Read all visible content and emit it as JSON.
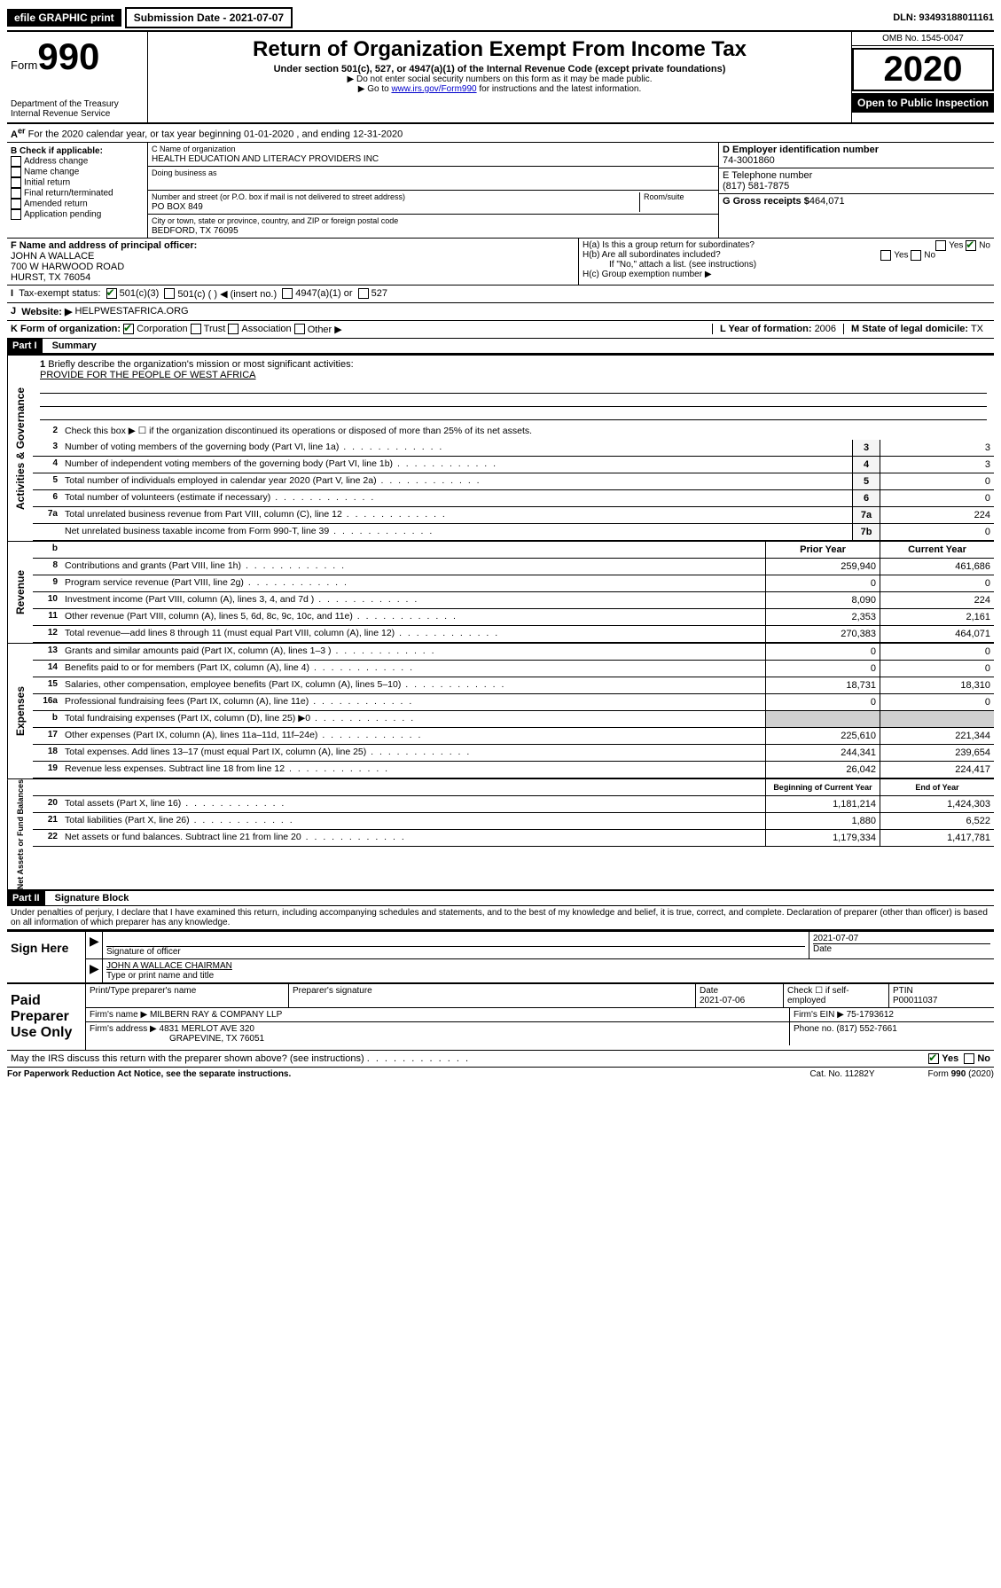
{
  "topbar": {
    "efile": "efile GRAPHIC print",
    "submission_label": "Submission Date - 2021-07-07",
    "dln_label": "DLN: 93493188011161"
  },
  "header": {
    "form_prefix": "Form",
    "form_number": "990",
    "dept": "Department of the Treasury",
    "irs": "Internal Revenue Service",
    "title": "Return of Organization Exempt From Income Tax",
    "subtitle": "Under section 501(c), 527, or 4947(a)(1) of the Internal Revenue Code (except private foundations)",
    "note1": "▶ Do not enter social security numbers on this form as it may be made public.",
    "note2_prefix": "▶ Go to ",
    "note2_link": "www.irs.gov/Form990",
    "note2_suffix": " for instructions and the latest information.",
    "omb": "OMB No. 1545-0047",
    "year": "2020",
    "inspect": "Open to Public Inspection"
  },
  "section_a": {
    "text": "For the 2020 calendar year, or tax year beginning 01-01-2020   , and ending 12-31-2020"
  },
  "box_b": {
    "title": "B Check if applicable:",
    "opts": [
      "Address change",
      "Name change",
      "Initial return",
      "Final return/terminated",
      "Amended return",
      "Application pending"
    ]
  },
  "box_c": {
    "name_label": "C Name of organization",
    "name": "HEALTH EDUCATION AND LITERACY PROVIDERS INC",
    "dba_label": "Doing business as",
    "addr_label": "Number and street (or P.O. box if mail is not delivered to street address)",
    "room_label": "Room/suite",
    "addr": "PO BOX 849",
    "city_label": "City or town, state or province, country, and ZIP or foreign postal code",
    "city": "BEDFORD, TX  76095"
  },
  "box_d": {
    "label": "D Employer identification number",
    "value": "74-3001860"
  },
  "box_e": {
    "label": "E Telephone number",
    "value": "(817) 581-7875"
  },
  "box_g": {
    "label": "G Gross receipts $",
    "value": "464,071"
  },
  "box_f": {
    "label": "F  Name and address of principal officer:",
    "name": "JOHN A WALLACE",
    "addr1": "700 W HARWOOD ROAD",
    "addr2": "HURST, TX  76054"
  },
  "box_h": {
    "ha": "H(a)  Is this a group return for subordinates?",
    "hb": "H(b)  Are all subordinates included?",
    "hb_note": "If \"No,\" attach a list. (see instructions)",
    "hc": "H(c)  Group exemption number ▶",
    "yes": "Yes",
    "no": "No"
  },
  "box_i": {
    "label": "Tax-exempt status:",
    "opt1": "501(c)(3)",
    "opt2": "501(c) (   ) ◀ (insert no.)",
    "opt3": "4947(a)(1) or",
    "opt4": "527"
  },
  "box_j": {
    "label": "Website: ▶",
    "value": "HELPWESTAFRICA.ORG"
  },
  "box_k": {
    "label": "K Form of organization:",
    "opts": [
      "Corporation",
      "Trust",
      "Association",
      "Other ▶"
    ]
  },
  "box_l": {
    "label": "L Year of formation:",
    "value": "2006"
  },
  "box_m": {
    "label": "M State of legal domicile:",
    "value": "TX"
  },
  "part1": {
    "header": "Part I",
    "title": "Summary",
    "line1_label": "Briefly describe the organization's mission or most significant activities:",
    "line1_value": "PROVIDE FOR THE PEOPLE OF WEST AFRICA",
    "line2": "Check this box ▶ ☐  if the organization discontinued its operations or disposed of more than 25% of its net assets.",
    "sections": {
      "governance": "Activities & Governance",
      "revenue": "Revenue",
      "expenses": "Expenses",
      "netassets": "Net Assets or Fund Balances"
    },
    "col_headers": {
      "prior": "Prior Year",
      "current": "Current Year",
      "boy": "Beginning of Current Year",
      "eoy": "End of Year"
    },
    "lines_gov": [
      {
        "n": "3",
        "label": "Number of voting members of the governing body (Part VI, line 1a)",
        "box": "3",
        "val": "3"
      },
      {
        "n": "4",
        "label": "Number of independent voting members of the governing body (Part VI, line 1b)",
        "box": "4",
        "val": "3"
      },
      {
        "n": "5",
        "label": "Total number of individuals employed in calendar year 2020 (Part V, line 2a)",
        "box": "5",
        "val": "0"
      },
      {
        "n": "6",
        "label": "Total number of volunteers (estimate if necessary)",
        "box": "6",
        "val": "0"
      },
      {
        "n": "7a",
        "label": "Total unrelated business revenue from Part VIII, column (C), line 12",
        "box": "7a",
        "val": "224"
      },
      {
        "n": "",
        "label": "Net unrelated business taxable income from Form 990-T, line 39",
        "box": "7b",
        "val": "0"
      }
    ],
    "lines_rev": [
      {
        "n": "8",
        "label": "Contributions and grants (Part VIII, line 1h)",
        "prior": "259,940",
        "cur": "461,686"
      },
      {
        "n": "9",
        "label": "Program service revenue (Part VIII, line 2g)",
        "prior": "0",
        "cur": "0"
      },
      {
        "n": "10",
        "label": "Investment income (Part VIII, column (A), lines 3, 4, and 7d )",
        "prior": "8,090",
        "cur": "224"
      },
      {
        "n": "11",
        "label": "Other revenue (Part VIII, column (A), lines 5, 6d, 8c, 9c, 10c, and 11e)",
        "prior": "2,353",
        "cur": "2,161"
      },
      {
        "n": "12",
        "label": "Total revenue—add lines 8 through 11 (must equal Part VIII, column (A), line 12)",
        "prior": "270,383",
        "cur": "464,071"
      }
    ],
    "lines_exp": [
      {
        "n": "13",
        "label": "Grants and similar amounts paid (Part IX, column (A), lines 1–3 )",
        "prior": "0",
        "cur": "0"
      },
      {
        "n": "14",
        "label": "Benefits paid to or for members (Part IX, column (A), line 4)",
        "prior": "0",
        "cur": "0"
      },
      {
        "n": "15",
        "label": "Salaries, other compensation, employee benefits (Part IX, column (A), lines 5–10)",
        "prior": "18,731",
        "cur": "18,310"
      },
      {
        "n": "16a",
        "label": "Professional fundraising fees (Part IX, column (A), line 11e)",
        "prior": "0",
        "cur": "0"
      },
      {
        "n": "b",
        "label": "Total fundraising expenses (Part IX, column (D), line 25) ▶0",
        "prior": "",
        "cur": "",
        "shaded": true
      },
      {
        "n": "17",
        "label": "Other expenses (Part IX, column (A), lines 11a–11d, 11f–24e)",
        "prior": "225,610",
        "cur": "221,344"
      },
      {
        "n": "18",
        "label": "Total expenses. Add lines 13–17 (must equal Part IX, column (A), line 25)",
        "prior": "244,341",
        "cur": "239,654"
      },
      {
        "n": "19",
        "label": "Revenue less expenses. Subtract line 18 from line 12",
        "prior": "26,042",
        "cur": "224,417"
      }
    ],
    "lines_net": [
      {
        "n": "20",
        "label": "Total assets (Part X, line 16)",
        "prior": "1,181,214",
        "cur": "1,424,303"
      },
      {
        "n": "21",
        "label": "Total liabilities (Part X, line 26)",
        "prior": "1,880",
        "cur": "6,522"
      },
      {
        "n": "22",
        "label": "Net assets or fund balances. Subtract line 21 from line 20",
        "prior": "1,179,334",
        "cur": "1,417,781"
      }
    ]
  },
  "part2": {
    "header": "Part II",
    "title": "Signature Block",
    "jurat": "Under penalties of perjury, I declare that I have examined this return, including accompanying schedules and statements, and to the best of my knowledge and belief, it is true, correct, and complete. Declaration of preparer (other than officer) is based on all information of which preparer has any knowledge.",
    "sign_here": "Sign Here",
    "sig_officer": "Signature of officer",
    "sig_date": "2021-07-07",
    "date_label": "Date",
    "officer_name": "JOHN A WALLACE  CHAIRMAN",
    "type_print": "Type or print name and title",
    "paid": "Paid Preparer Use Only",
    "prep_name_label": "Print/Type preparer's name",
    "prep_sig_label": "Preparer's signature",
    "prep_date": "2021-07-06",
    "check_if": "Check ☐ if self-employed",
    "ptin_label": "PTIN",
    "ptin": "P00011037",
    "firm_name_label": "Firm's name    ▶",
    "firm_name": "MILBERN RAY & COMPANY LLP",
    "firm_ein_label": "Firm's EIN ▶",
    "firm_ein": "75-1793612",
    "firm_addr_label": "Firm's address ▶",
    "firm_addr": "4831 MERLOT AVE 320",
    "firm_city": "GRAPEVINE, TX  76051",
    "phone_label": "Phone no.",
    "phone": "(817) 552-7661",
    "discuss": "May the IRS discuss this return with the preparer shown above? (see instructions)",
    "yes": "Yes",
    "no": "No"
  },
  "footer": {
    "left": "For Paperwork Reduction Act Notice, see the separate instructions.",
    "center": "Cat. No. 11282Y",
    "right": "Form 990 (2020)"
  }
}
